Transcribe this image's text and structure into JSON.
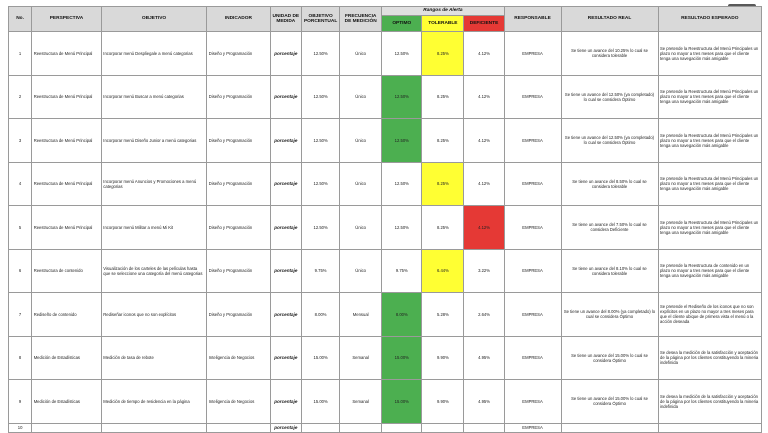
{
  "headers": {
    "no": "No.",
    "perspectiva": "PERSPECTIVA",
    "objetivo": "OBJETIVO",
    "indicador": "INDICADOR",
    "unidad": "UNIDAD DE MEDIDA",
    "objetivo_pct": "OBJETIVO PORCENTUAL",
    "frecuencia": "FRECUENCIA DE MEDICIÓN",
    "rangos": "Rangos de Alerta",
    "optimo": "OPTIMO",
    "tolerable": "TOLERABLE",
    "deficiente": "DEFICIENTE",
    "responsable": "RESPONSABLE",
    "resultado_real": "RESULTADO REAL",
    "resultado_esperado": "RESULTADO ESPERADO"
  },
  "rows": [
    {
      "no": "1",
      "perspectiva": "Reestructura de Menú Principal",
      "objetivo": "Incorporar menú Despliegale a menú categorias",
      "indicador": "Diseño y Programación",
      "unidad": "porcentaje",
      "objetivo_pct": "12.50%",
      "frecuencia": "Único",
      "optimo": "12.50%",
      "tolerable": "8.25%",
      "deficiente": "4.12%",
      "highlight": "tolerable",
      "responsable": "EMPRESA",
      "real": "Se tiene un avance del 10.25% lo cual se considera tolerable",
      "esperado": "Se pretende la Reestructura del Menú Principales un plazo no mayor a tres meses para que el cliente tenga una navegación más amigable"
    },
    {
      "no": "2",
      "perspectiva": "Reestructura de Menú Principal",
      "objetivo": "Incorporar menú Buscar a menú categorias",
      "indicador": "Diseño y Programación",
      "unidad": "porcentaje",
      "objetivo_pct": "12.50%",
      "frecuencia": "Único",
      "optimo": "12.50%",
      "tolerable": "8.25%",
      "deficiente": "4.12%",
      "highlight": "optimo",
      "responsable": "EMPRESA",
      "real": "Se tiene un avance del 12.50% (ya completado) lo cual se considera Óptimo",
      "esperado": "Se pretende la Reestructura del Menú Principales un plazo no mayor a tres meses para que el cliente tenga una navegación más amigable"
    },
    {
      "no": "3",
      "perspectiva": "Reestructura de Menú Principal",
      "objetivo": "Incorporar menú Diseño Junior a menú categorias",
      "indicador": "Diseño y Programación",
      "unidad": "porcentaje",
      "objetivo_pct": "12.50%",
      "frecuencia": "Único",
      "optimo": "12.50%",
      "tolerable": "8.25%",
      "deficiente": "4.12%",
      "highlight": "optimo",
      "responsable": "EMPRESA",
      "real": "Se tiene un avance del 12.50% (ya completado) lo cual se considera Óptimo",
      "esperado": "Se pretende la Reestructura del Menú Principales un plazo no mayor a tres meses para que el cliente tenga una navegación más amigable"
    },
    {
      "no": "4",
      "perspectiva": "Reestructura de Menú Principal",
      "objetivo": "Incorporar menú Anuncios y Promociones a menú categorias",
      "indicador": "Diseño y Programación",
      "unidad": "porcentaje",
      "objetivo_pct": "12.50%",
      "frecuencia": "Único",
      "optimo": "12.50%",
      "tolerable": "8.25%",
      "deficiente": "4.12%",
      "highlight": "tolerable",
      "responsable": "EMPRESA",
      "real": "Se tiene un avance del 8.50% lo cual se considera tolerable",
      "esperado": "Se pretende la Reestructura del Menú Principales un plazo no mayor a tres meses para que el cliente tenga una navegación más amigable"
    },
    {
      "no": "5",
      "perspectiva": "Reestructura de Menú Principal",
      "objetivo": "Incorporar menú Militar a menú Mi Kit",
      "indicador": "Diseño y Programación",
      "unidad": "porcentaje",
      "objetivo_pct": "12.50%",
      "frecuencia": "Único",
      "optimo": "12.50%",
      "tolerable": "8.25%",
      "deficiente": "4.12%",
      "highlight": "deficiente",
      "responsable": "EMPRESA",
      "real": "Se tiene un avance del 7.50% lo cual se considera Deficiente",
      "esperado": "Se pretende la Reestructura del Menú Principales un plazo no mayor a tres meses para que el cliente tenga una navegación más amigable"
    },
    {
      "no": "6",
      "perspectiva": "Reestructura de contenido",
      "objetivo": "Visualización de los carteles de las películas hasta que se seleccione una categoría del menú categorias",
      "indicador": "Diseño y Programación",
      "unidad": "porcentaje",
      "objetivo_pct": "9.75%",
      "frecuencia": "Único",
      "optimo": "9.75%",
      "tolerable": "6.44%",
      "deficiente": "3.22%",
      "highlight": "tolerable",
      "responsable": "EMPRESA",
      "real": "Se tiene un avance del 8.10% lo cual se considera tolerable",
      "esperado": "Se pretende la Reestructura de contenido en un plazo no mayor a tres meses para que el cliente tenga una navegación más amigable"
    },
    {
      "no": "7",
      "perspectiva": "Rediseño de contenido",
      "objetivo": "Rediseñar iconos que no son explícitos",
      "indicador": "Diseño y Programación",
      "unidad": "porcentaje",
      "objetivo_pct": "8.00%",
      "frecuencia": "Mensual",
      "optimo": "8.00%",
      "tolerable": "5.28%",
      "deficiente": "2.64%",
      "highlight": "optimo",
      "responsable": "EMPRESA",
      "real": "Se tiene un avance del 8.00% (ya completado) lo cual se considera Óptimo",
      "esperado": "Se pretende el Rediseño de los iconos que no son explícitos en un plazo no mayor a tres meses para que el cliente ubique de primera vista el menú o la acción deseada"
    },
    {
      "no": "8",
      "perspectiva": "Medición de Estadísticas",
      "objetivo": "Medición de tasa de rebote",
      "indicador": "Inteligencia de Negocios",
      "unidad": "porcentaje",
      "objetivo_pct": "15.00%",
      "frecuencia": "Semanal",
      "optimo": "15.00%",
      "tolerable": "9.90%",
      "deficiente": "4.95%",
      "highlight": "optimo",
      "responsable": "EMPRESA",
      "real": "Se tiene un avance del 15.00% lo cual se considera Óptimo",
      "esperado": "Se desea la medición de la satisfacción y aceptación de la página por los clientes constituyendo la mineria indefinida"
    },
    {
      "no": "9",
      "perspectiva": "Medición de Estadísticas",
      "objetivo": "Medición de tiempo de residencia en la página",
      "indicador": "Inteligencia de Negocios",
      "unidad": "porcentaje",
      "objetivo_pct": "15.00%",
      "frecuencia": "Semanal",
      "optimo": "15.00%",
      "tolerable": "9.90%",
      "deficiente": "4.95%",
      "highlight": "optimo",
      "responsable": "EMPRESA",
      "real": "Se tiene un avance del 15.00% lo cual se considera Óptimo",
      "esperado": "Se desea la medición de la satisfacción y aceptación de la página por los clientes constituyendo la mineria indefinida"
    }
  ],
  "extra_row": {
    "no": "10",
    "unidad": "porcentaje",
    "responsable": "EMPRESA"
  },
  "colors": {
    "optimo": "#4caf50",
    "tolerable": "#ffff33",
    "deficiente": "#e53935",
    "header": "#d9d9d9"
  }
}
